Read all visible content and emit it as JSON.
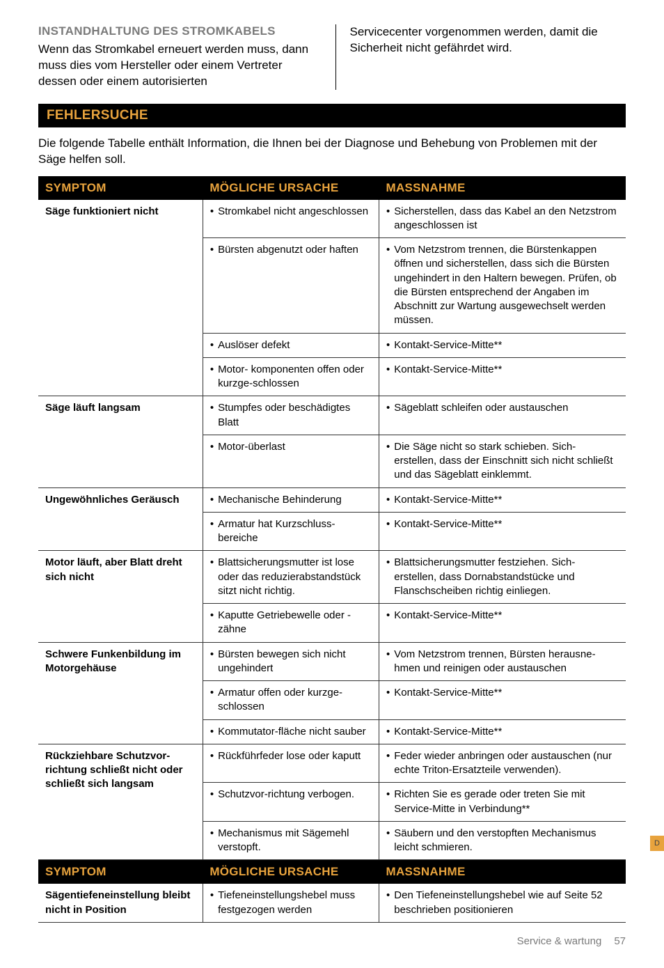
{
  "intro": {
    "heading": "INSTANDHALTUNG DES STROMKABELS",
    "left_text": "Wenn das Stromkabel erneuert werden muss, dann muss dies vom Hersteller oder einem Vertreter dessen oder einem autorisierten",
    "right_text": "Servicecenter vorgenommen werden, damit die Sicherheit nicht gefährdet wird."
  },
  "section": {
    "title": "FEHLERSUCHE",
    "description": "Die folgende Tabelle enthält Information, die Ihnen bei der Diagnose und Behebung von Problemen mit der Säge helfen soll."
  },
  "table": {
    "headers": {
      "symptom": "SYMPTOM",
      "cause": "MÖGLICHE URSACHE",
      "action": "MASSNAHME"
    },
    "groups": [
      {
        "symptom": "Säge funktioniert nicht",
        "rows": [
          {
            "cause": "Stromkabel nicht angeschlossen",
            "action": "Sicherstellen, dass das Kabel an den Netzstrom angeschlossen ist"
          },
          {
            "cause": "Bürsten abgenutzt oder haften",
            "action": "Vom Netzstrom trennen, die Bürstenkappen öffnen und sicherstellen, dass sich die Bürsten ungehindert in den Haltern bewegen. Prüfen, ob die Bürsten entsprechend der Angaben im Abschnitt zur Wartung ausgewechselt werden müssen."
          },
          {
            "cause": "Auslöser defekt",
            "action": "Kontakt-Service-Mitte**"
          },
          {
            "cause": "Motor- komponenten offen oder kurzge-schlossen",
            "action": "Kontakt-Service-Mitte**"
          }
        ]
      },
      {
        "symptom": "Säge läuft langsam",
        "rows": [
          {
            "cause": "Stumpfes oder beschädigtes Blatt",
            "action": "Sägeblatt schleifen oder austauschen"
          },
          {
            "cause": "Motor-überlast",
            "action": "Die Säge nicht so stark schieben. Sich- erstellen, dass der Einschnitt sich nicht schließt und das Sägeblatt einklemmt."
          }
        ]
      },
      {
        "symptom": "Ungewöhnliches Geräusch",
        "rows": [
          {
            "cause": "Mechanische Behinderung",
            "action": "Kontakt-Service-Mitte**"
          },
          {
            "cause": "Armatur hat Kurzschluss-bereiche",
            "action": "Kontakt-Service-Mitte**"
          }
        ]
      },
      {
        "symptom": "Motor läuft, aber Blatt dreht sich nicht",
        "rows": [
          {
            "cause": "Blattsicherungsmutter ist lose oder das reduzierabstandstück sitzt nicht richtig.",
            "action": "Blattsicherungsmutter festziehen. Sich- erstellen, dass Dornabstandstücke und Flanschscheiben  richtig einliegen."
          },
          {
            "cause": "Kaputte Getriebewelle oder -zähne",
            "action": "Kontakt-Service-Mitte**"
          }
        ]
      },
      {
        "symptom": "Schwere Funkenbildung im Motorgehäuse",
        "rows": [
          {
            "cause": "Bürsten bewegen sich nicht ungehindert",
            "action": "Vom Netzstrom trennen, Bürsten herausne- hmen und reinigen oder austauschen"
          },
          {
            "cause": "Armatur offen oder kurzge- schlossen",
            "action": "Kontakt-Service-Mitte**"
          },
          {
            "cause": "Kommutator-fläche nicht sauber",
            "action": "Kontakt-Service-Mitte**"
          }
        ]
      },
      {
        "symptom": "Rückziehbare Schutzvor- richtung schließt nicht oder schließt sich langsam",
        "rows": [
          {
            "cause": "Rückführfeder lose oder kaputt",
            "action": "Feder wieder anbringen oder austauschen (nur echte Triton-Ersatzteile verwenden)."
          },
          {
            "cause": "Schutzvor-richtung verbogen.",
            "action": "Richten Sie es gerade oder treten Sie mit Service-Mitte in Verbindung**"
          },
          {
            "cause": "Mechanismus mit Sägemehl verstopft.",
            "action": "Säubern und den verstopften Mechanismus leicht schmieren."
          }
        ]
      }
    ],
    "groups2": [
      {
        "symptom": "Sägentiefeneinstellung bleibt nicht in Position",
        "rows": [
          {
            "cause": "Tiefeneinstellungshebel muss festgezogen werden",
            "action": "Den Tiefeneinstellungshebel wie auf Seite 52 beschrieben positionieren"
          }
        ]
      }
    ]
  },
  "footer": {
    "label": "Service & wartung",
    "page": "57"
  },
  "sidetab": "D"
}
